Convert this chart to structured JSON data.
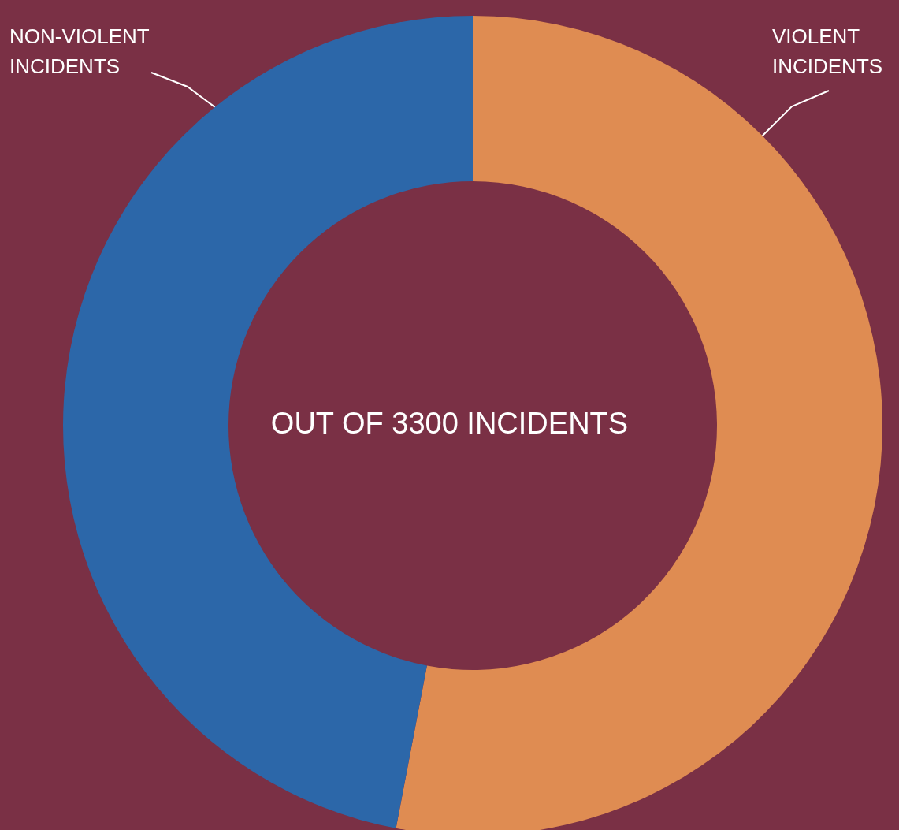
{
  "chart_data": {
    "type": "donut",
    "categories": [
      "VIOLENT INCIDENTS",
      "NON-VIOLENT INCIDENTS"
    ],
    "values": [
      53,
      47
    ],
    "colors": [
      "#df8c52",
      "#2c67a9"
    ],
    "annotations": [
      "OUT OF 3300 INCIDENTS"
    ],
    "legend": false
  }
}
